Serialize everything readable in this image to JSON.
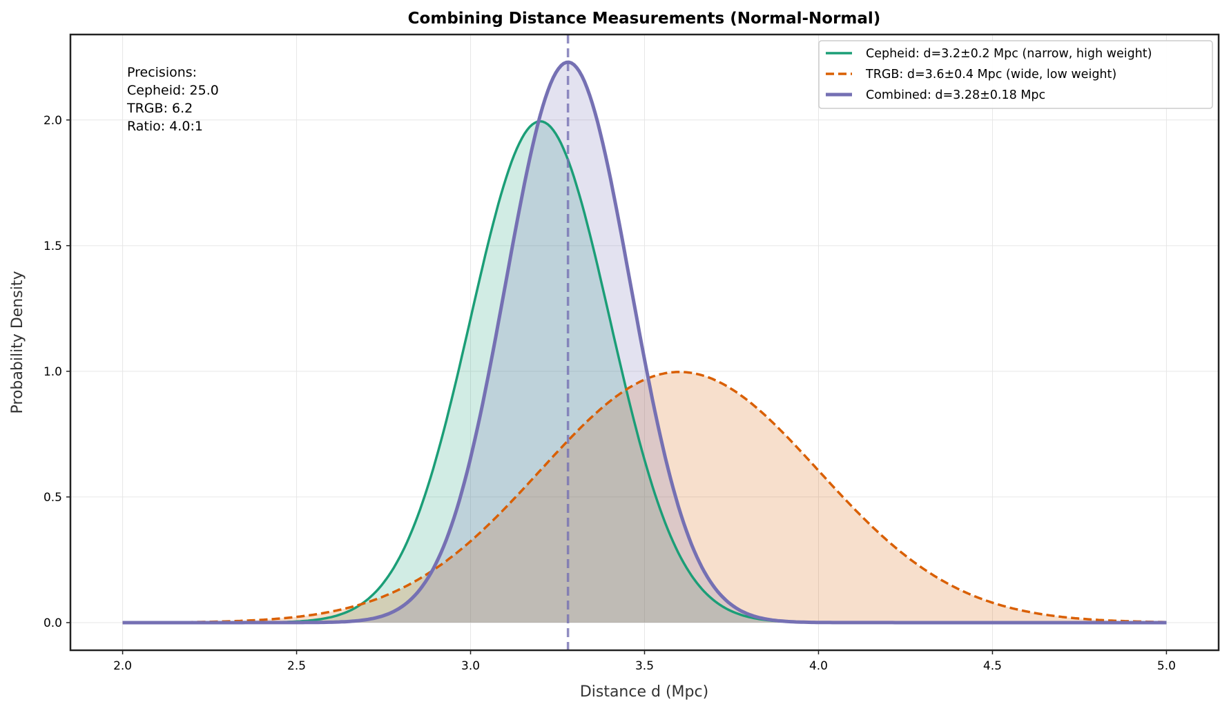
{
  "chart_data": {
    "type": "line",
    "title": "Combining Distance Measurements (Normal-Normal)",
    "xlabel": "Distance d (Mpc)",
    "ylabel": "Probability Density",
    "xlim": [
      1.85,
      5.15
    ],
    "ylim": [
      -0.11,
      2.34
    ],
    "xticks": [
      "2.0",
      "2.5",
      "3.0",
      "3.5",
      "4.0",
      "4.5",
      "5.0"
    ],
    "yticks": [
      "0.0",
      "0.5",
      "1.0",
      "1.5",
      "2.0"
    ],
    "grid": true,
    "legend_position": "top-right",
    "x_range": [
      2.0,
      5.0
    ],
    "series": [
      {
        "name": "Cepheid: d=3.2±0.2 Mpc (narrow, high weight)",
        "distribution": "normal",
        "mean": 3.2,
        "std": 0.2,
        "color": "#1b9e77",
        "style": "solid",
        "filled": true
      },
      {
        "name": "TRGB: d=3.6±0.4 Mpc (wide, low weight)",
        "distribution": "normal",
        "mean": 3.6,
        "std": 0.4,
        "color": "#d95f02",
        "style": "dashed",
        "filled": true
      },
      {
        "name": "Combined: d=3.28±0.18 Mpc",
        "distribution": "normal",
        "mean": 3.28,
        "std": 0.1789,
        "color": "#7570b3",
        "style": "solid",
        "filled": true
      }
    ],
    "vline": {
      "x": 3.28,
      "color": "#7570b3",
      "style": "dashed"
    },
    "annotation": [
      "Precisions:",
      "Cepheid: 25.0",
      "TRGB: 6.2",
      "Ratio: 4.0:1"
    ]
  }
}
